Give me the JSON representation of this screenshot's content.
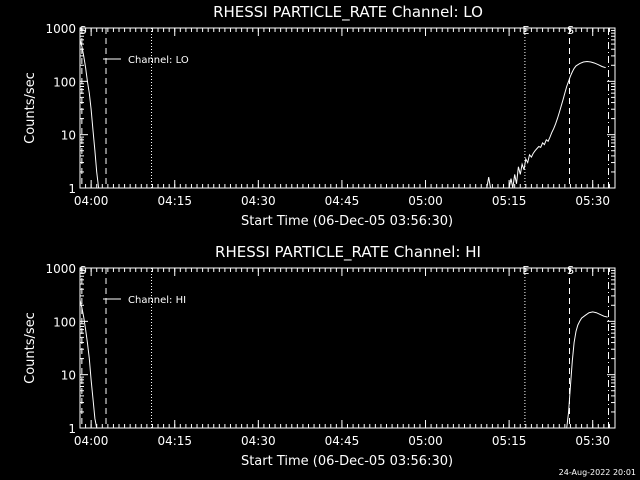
{
  "footer": {
    "date": "24-Aug-2022 20:01"
  },
  "chart_data": [
    {
      "type": "line",
      "title": "RHESSI PARTICLE_RATE Channel: LO",
      "xlabel": "Start Time (06-Dec-05 03:56:30)",
      "ylabel": "Counts/sec",
      "yscale": "log",
      "ylim": [
        1,
        1000
      ],
      "xlim": [
        "03:58:00",
        "05:34:00"
      ],
      "xticks": [
        "04:00",
        "04:15",
        "04:30",
        "04:45",
        "05:00",
        "05:15",
        "05:30"
      ],
      "yticks": [
        "1",
        "10",
        "100",
        "1000"
      ],
      "legend": "Channel: LO",
      "markers": [
        {
          "label": "S",
          "time": "03:58:20",
          "style": "dashed"
        },
        {
          "label": "",
          "time": "04:02:40",
          "style": "dashed"
        },
        {
          "label": "",
          "time": "04:10:50",
          "style": "dotted"
        },
        {
          "label": "E",
          "time": "05:17:50",
          "style": "dotted"
        },
        {
          "label": "S",
          "time": "05:25:50",
          "style": "dashed"
        },
        {
          "label": "",
          "time": "05:32:50",
          "style": "dashdot"
        }
      ],
      "series": [
        {
          "name": "Channel: LO",
          "segments": [
            [
              [
                "03:58:00",
                600
              ],
              [
                "03:58:20",
                450
              ],
              [
                "03:58:40",
                300
              ],
              [
                "03:59:00",
                180
              ],
              [
                "03:59:20",
                100
              ],
              [
                "03:59:40",
                60
              ],
              [
                "04:00:00",
                30
              ],
              [
                "04:00:20",
                12
              ],
              [
                "04:00:40",
                5
              ],
              [
                "04:01:00",
                2
              ],
              [
                "04:01:20",
                1
              ]
            ],
            [
              [
                "05:11:00",
                1
              ],
              [
                "05:11:20",
                1.6
              ],
              [
                "05:11:40",
                1
              ]
            ],
            [
              [
                "05:15:00",
                1
              ],
              [
                "05:15:20",
                1.5
              ],
              [
                "05:15:40",
                1
              ],
              [
                "05:16:00",
                1.8
              ],
              [
                "05:16:20",
                1.2
              ],
              [
                "05:16:40",
                2.5
              ],
              [
                "05:17:00",
                1.8
              ],
              [
                "05:17:20",
                2.8
              ],
              [
                "05:17:40",
                2.2
              ],
              [
                "05:18:00",
                3.5
              ],
              [
                "05:18:20",
                3.0
              ],
              [
                "05:18:40",
                4.2
              ],
              [
                "05:19:00",
                3.8
              ],
              [
                "05:19:20",
                4.5
              ],
              [
                "05:19:40",
                5.0
              ],
              [
                "05:20:00",
                5.5
              ],
              [
                "05:20:20",
                6.0
              ],
              [
                "05:20:40",
                5.8
              ],
              [
                "05:21:00",
                7.0
              ],
              [
                "05:21:20",
                6.5
              ],
              [
                "05:21:40",
                8.0
              ],
              [
                "05:22:00",
                7.5
              ],
              [
                "05:22:20",
                9.0
              ],
              [
                "05:22:40",
                11
              ],
              [
                "05:23:00",
                13
              ],
              [
                "05:23:20",
                16
              ],
              [
                "05:23:40",
                20
              ],
              [
                "05:24:00",
                26
              ],
              [
                "05:24:20",
                34
              ],
              [
                "05:24:40",
                45
              ],
              [
                "05:25:00",
                60
              ],
              [
                "05:25:20",
                80
              ],
              [
                "05:25:40",
                100
              ],
              [
                "05:26:00",
                125
              ],
              [
                "05:26:20",
                150
              ],
              [
                "05:26:40",
                175
              ],
              [
                "05:27:00",
                195
              ],
              [
                "05:27:40",
                215
              ],
              [
                "05:28:20",
                230
              ],
              [
                "05:29:00",
                235
              ],
              [
                "05:29:40",
                230
              ],
              [
                "05:30:20",
                220
              ],
              [
                "05:31:00",
                205
              ],
              [
                "05:31:40",
                190
              ],
              [
                "05:32:20",
                180
              ]
            ]
          ]
        }
      ]
    },
    {
      "type": "line",
      "title": "RHESSI PARTICLE_RATE Channel: HI",
      "xlabel": "Start Time (06-Dec-05 03:56:30)",
      "ylabel": "Counts/sec",
      "yscale": "log",
      "ylim": [
        1,
        1000
      ],
      "xlim": [
        "03:58:00",
        "05:34:00"
      ],
      "xticks": [
        "04:00",
        "04:15",
        "04:30",
        "04:45",
        "05:00",
        "05:15",
        "05:30"
      ],
      "yticks": [
        "1",
        "10",
        "100",
        "1000"
      ],
      "legend": "Channel: HI",
      "markers": [
        {
          "label": "S",
          "time": "03:58:20",
          "style": "dashed"
        },
        {
          "label": "",
          "time": "04:02:40",
          "style": "dashed"
        },
        {
          "label": "",
          "time": "04:10:50",
          "style": "dotted"
        },
        {
          "label": "E",
          "time": "05:17:50",
          "style": "dotted"
        },
        {
          "label": "S",
          "time": "05:25:50",
          "style": "dashed"
        },
        {
          "label": "",
          "time": "05:32:50",
          "style": "dashdot"
        }
      ],
      "series": [
        {
          "name": "Channel: HI",
          "segments": [
            [
              [
                "03:58:00",
                250
              ],
              [
                "03:58:20",
                180
              ],
              [
                "03:58:40",
                120
              ],
              [
                "03:59:00",
                70
              ],
              [
                "03:59:20",
                40
              ],
              [
                "03:59:40",
                20
              ],
              [
                "04:00:00",
                8
              ],
              [
                "04:00:20",
                3.5
              ],
              [
                "04:00:40",
                1.5
              ],
              [
                "04:01:00",
                1
              ]
            ],
            [
              [
                "05:25:20",
                1
              ],
              [
                "05:25:40",
                2
              ],
              [
                "05:26:00",
                6
              ],
              [
                "05:26:20",
                18
              ],
              [
                "05:26:40",
                40
              ],
              [
                "05:27:00",
                65
              ],
              [
                "05:27:20",
                85
              ],
              [
                "05:27:40",
                100
              ],
              [
                "05:28:00",
                115
              ],
              [
                "05:28:40",
                130
              ],
              [
                "05:29:20",
                145
              ],
              [
                "05:30:00",
                150
              ],
              [
                "05:30:40",
                145
              ],
              [
                "05:31:20",
                135
              ],
              [
                "05:32:00",
                125
              ],
              [
                "05:32:40",
                120
              ]
            ]
          ]
        }
      ]
    }
  ]
}
